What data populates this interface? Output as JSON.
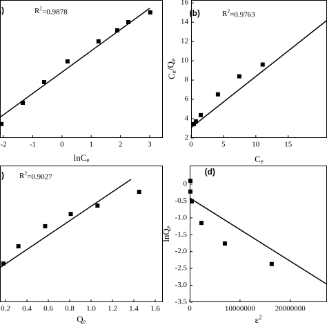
{
  "chart_data": [
    {
      "type": "scatter",
      "panel": "(a)",
      "xlabel": {
        "parts": [
          "lnC",
          "e"
        ],
        "script": "sub"
      },
      "r2": {
        "parts": [
          "R",
          "2",
          "=0.9878"
        ],
        "script": "sup"
      },
      "x": [
        -2.07,
        -1.34,
        -0.61,
        0.19,
        1.25,
        1.89,
        2.27,
        3.02
      ],
      "values": [
        10.1,
        25.5,
        40.5,
        55.5,
        70,
        78,
        84,
        91
      ],
      "fit": {
        "x": [
          -2.12,
          3.0
        ],
        "y": [
          15,
          94
        ]
      },
      "color": "#000000",
      "xlim": [
        -2.12,
        3.45
      ],
      "xticks": [
        -2,
        -1,
        0,
        1,
        2,
        3
      ],
      "ylim": [
        0,
        100
      ],
      "yticks": []
    },
    {
      "type": "scatter",
      "panel": "(b)",
      "xlabel": {
        "parts": [
          "C",
          "e"
        ],
        "script": "sub"
      },
      "ylabel": {
        "parts": [
          "C",
          "e",
          "/Q",
          "e"
        ],
        "script": "sub"
      },
      "r2": {
        "parts": [
          "R",
          "2",
          "=0.9763"
        ],
        "script": "sup"
      },
      "x": [
        0.43,
        0.74,
        1.49,
        4.15,
        7.45,
        11.06
      ],
      "values": [
        3.44,
        3.72,
        4.37,
        6.52,
        8.39,
        9.61
      ],
      "fit": {
        "x": [
          0,
          21
        ],
        "y": [
          3.08,
          14.2
        ]
      },
      "color": "#000000",
      "xlim": [
        0,
        21
      ],
      "xticks": [
        0,
        5,
        10,
        15
      ],
      "ylim": [
        2,
        16.3
      ],
      "yticks": [
        2,
        4,
        6,
        8,
        10,
        12,
        14,
        16
      ]
    },
    {
      "type": "scatter",
      "panel": "(c)",
      "xlabel": {
        "parts": [
          "Q",
          "e"
        ],
        "script": "sub"
      },
      "r2": {
        "parts": [
          "R",
          "2",
          "=0.9027"
        ],
        "script": "sup"
      },
      "x": [
        0.18,
        0.32,
        0.57,
        0.81,
        1.06,
        1.45
      ],
      "values": [
        28.3,
        40.9,
        55.6,
        64.6,
        70.7,
        80.8
      ],
      "fit": {
        "x": [
          0.148,
          1.374
        ],
        "y": [
          25.3,
          89.9
        ]
      },
      "color": "#000000",
      "xlim": [
        0.148,
        1.671
      ],
      "xticks": [
        {
          "value": 0.2,
          "label": "0.2"
        },
        {
          "value": 0.4,
          "label": "0.4"
        },
        {
          "value": 0.6,
          "label": "0.6"
        },
        {
          "value": 0.8,
          "label": "0.8"
        },
        {
          "value": 1.0,
          "label": "1.0"
        },
        {
          "value": 1.2,
          "label": "1.2"
        },
        {
          "value": 1.4,
          "label": "1.4"
        },
        {
          "value": 1.6,
          "label": "1.6"
        }
      ],
      "ylim": [
        0,
        100
      ],
      "yticks": []
    },
    {
      "type": "scatter",
      "panel": "(d)",
      "xlabel": {
        "parts": [
          "ε",
          "2"
        ],
        "script": "sup"
      },
      "ylabel": {
        "parts": [
          "lnQ",
          "e"
        ],
        "script": "sub"
      },
      "x": [
        137000,
        137000,
        411000,
        2330000,
        6990000,
        16300000
      ],
      "values": [
        0.1,
        -0.22,
        -0.51,
        -1.15,
        -1.76,
        -2.37
      ],
      "fit": {
        "x": [
          0,
          27300000
        ],
        "y": [
          -0.41,
          -2.97
        ]
      },
      "color": "#000000",
      "xlim": [
        0,
        27300000
      ],
      "xticks": [
        0,
        10000000,
        20000000
      ],
      "ylim": [
        -3.5,
        0.55
      ],
      "yticks": [
        0,
        -0.5,
        {
          "value": -1.0,
          "label": "-1.0"
        },
        -1.5,
        {
          "value": -2.0,
          "label": "-2.0"
        },
        -2.5,
        {
          "value": -3.0,
          "label": "-3.0"
        },
        -3.5
      ]
    }
  ]
}
